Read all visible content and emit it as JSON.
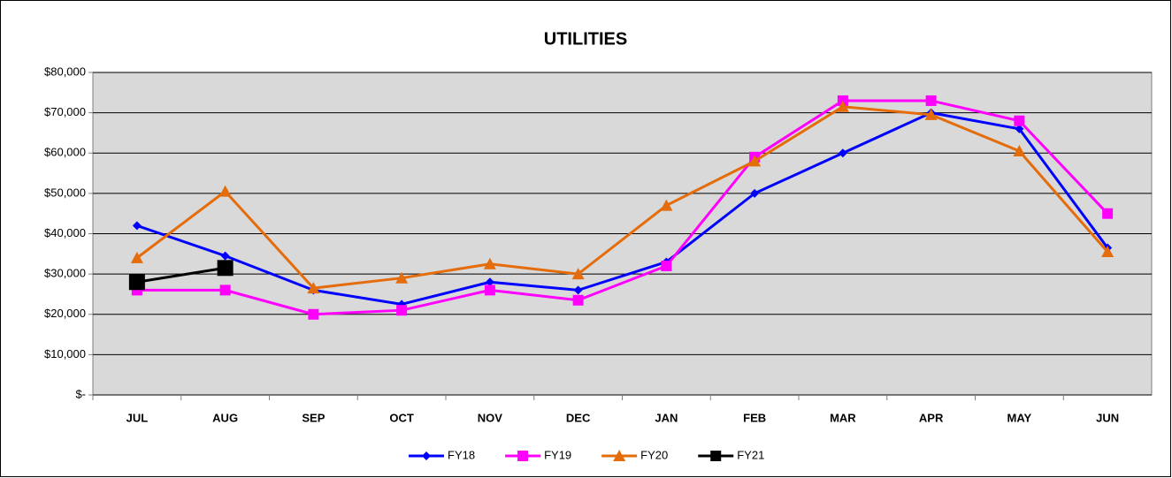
{
  "chart_data": {
    "type": "line",
    "title": "UTILITIES",
    "categories": [
      "JUL",
      "AUG",
      "SEP",
      "OCT",
      "NOV",
      "DEC",
      "JAN",
      "FEB",
      "MAR",
      "APR",
      "MAY",
      "JUN"
    ],
    "series": [
      {
        "name": "FY18",
        "color": "#0000ff",
        "marker": "diamond",
        "values": [
          42000,
          34500,
          26000,
          22500,
          28000,
          26000,
          33000,
          50000,
          60000,
          70000,
          66000,
          36500
        ]
      },
      {
        "name": "FY19",
        "color": "#ff00ff",
        "marker": "square",
        "values": [
          26000,
          26000,
          20000,
          21000,
          26000,
          23500,
          32000,
          59000,
          73000,
          73000,
          68000,
          45000
        ]
      },
      {
        "name": "FY20",
        "color": "#e46c0a",
        "marker": "triangle",
        "values": [
          34000,
          50500,
          26500,
          29000,
          32500,
          30000,
          47000,
          58000,
          71500,
          69500,
          60500,
          35500
        ]
      },
      {
        "name": "FY21",
        "color": "#000000",
        "marker": "bigsquare",
        "values": [
          28000,
          31500,
          null,
          null,
          null,
          null,
          null,
          null,
          null,
          null,
          null,
          null
        ]
      }
    ],
    "ylim": [
      0,
      80000
    ],
    "yticks": [
      {
        "value": 0,
        "label": "$-"
      },
      {
        "value": 10000,
        "label": "$10,000"
      },
      {
        "value": 20000,
        "label": "$20,000"
      },
      {
        "value": 30000,
        "label": "$30,000"
      },
      {
        "value": 40000,
        "label": "$40,000"
      },
      {
        "value": 50000,
        "label": "$50,000"
      },
      {
        "value": 60000,
        "label": "$60,000"
      },
      {
        "value": 70000,
        "label": "$70,000"
      },
      {
        "value": 80000,
        "label": "$80,000"
      }
    ],
    "grid": true,
    "legend": "bottom"
  }
}
